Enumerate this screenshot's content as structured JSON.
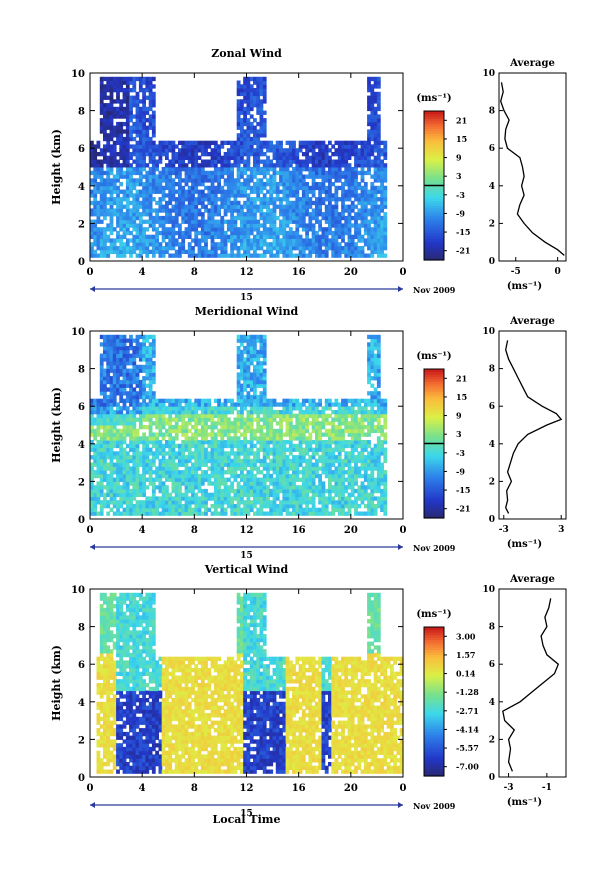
{
  "figure": {
    "date_label": "Nov 2009",
    "xlabel": "Local Time",
    "day_label": "15"
  },
  "chart_data": [
    {
      "type": "heatmap",
      "title": "Zonal Wind",
      "ylabel": "Height (km)",
      "xlim": [
        0,
        24
      ],
      "ylim": [
        0,
        10
      ],
      "x_ticks": [
        "0",
        "4",
        "8",
        "12",
        "16",
        "20",
        "0"
      ],
      "y_ticks": [
        "0",
        "2",
        "4",
        "6",
        "8",
        "10"
      ],
      "colorbar": {
        "unit": "(ms⁻¹)",
        "ticks": [
          "21",
          "15",
          "9",
          "3",
          "-3",
          "-9",
          "-15",
          "-21"
        ],
        "range": [
          -24,
          24
        ],
        "zero_contour": true
      },
      "profile": {
        "title": "Average",
        "xlabel": "(ms⁻¹)",
        "xlim": [
          -7,
          1
        ],
        "x_ticks": [
          "-5",
          "0"
        ],
        "y_ticks": [
          "0",
          "2",
          "4",
          "6",
          "8",
          "10"
        ],
        "height": [
          0.3,
          0.6,
          1.0,
          1.5,
          2.0,
          2.5,
          3.0,
          3.5,
          4.0,
          4.5,
          5.0,
          5.5,
          6.0,
          6.5,
          7.0,
          7.5,
          8.0,
          8.5,
          9.0,
          9.5
        ],
        "value": [
          0.8,
          0.0,
          -1.5,
          -3.0,
          -4.0,
          -4.8,
          -4.5,
          -4.0,
          -4.3,
          -4.0,
          -4.2,
          -4.5,
          -6.0,
          -6.3,
          -6.2,
          -5.8,
          -6.4,
          -6.8,
          -6.5,
          -6.7
        ]
      }
    },
    {
      "type": "heatmap",
      "title": "Meridional Wind",
      "ylabel": "Height (km)",
      "xlim": [
        0,
        24
      ],
      "ylim": [
        0,
        10
      ],
      "x_ticks": [
        "0",
        "4",
        "8",
        "12",
        "16",
        "20",
        "0"
      ],
      "y_ticks": [
        "0",
        "2",
        "4",
        "6",
        "8",
        "10"
      ],
      "colorbar": {
        "unit": "(ms⁻¹)",
        "ticks": [
          "21",
          "15",
          "9",
          "3",
          "-3",
          "-9",
          "-15",
          "-21"
        ],
        "range": [
          -24,
          24
        ],
        "zero_contour": true
      },
      "profile": {
        "title": "Average",
        "xlabel": "(ms⁻¹)",
        "xlim": [
          -3.5,
          3.5
        ],
        "x_ticks": [
          "-3",
          "3"
        ],
        "y_ticks": [
          "0",
          "2",
          "4",
          "6",
          "8",
          "10"
        ],
        "height": [
          0.3,
          0.6,
          1.0,
          1.5,
          2.0,
          2.5,
          3.0,
          3.5,
          4.0,
          4.5,
          5.0,
          5.3,
          5.6,
          6.0,
          6.5,
          7.0,
          7.5,
          8.0,
          8.5,
          9.0,
          9.5
        ],
        "value": [
          -2.5,
          -2.8,
          -2.6,
          -2.7,
          -2.2,
          -2.6,
          -2.3,
          -2.0,
          -1.5,
          -0.5,
          1.5,
          3.0,
          2.5,
          1.0,
          -0.5,
          -1.0,
          -1.5,
          -2.0,
          -2.5,
          -2.8,
          -2.6
        ]
      }
    },
    {
      "type": "heatmap",
      "title": "Vertical Wind",
      "ylabel": "Height (km)",
      "xlim": [
        0,
        24
      ],
      "ylim": [
        0,
        10
      ],
      "x_ticks": [
        "0",
        "4",
        "8",
        "12",
        "16",
        "20",
        "0"
      ],
      "y_ticks": [
        "0",
        "2",
        "4",
        "6",
        "8",
        "10"
      ],
      "colorbar": {
        "unit": "(ms⁻¹)",
        "ticks": [
          "3.00",
          "1.57",
          "0.14",
          "-1.28",
          "-2.71",
          "-4.14",
          "-5.57",
          "-7.00"
        ],
        "range": [
          -7.72,
          3.72
        ],
        "zero_contour": false
      },
      "profile": {
        "title": "Average",
        "xlabel": "(ms⁻¹)",
        "xlim": [
          -3.5,
          0
        ],
        "x_ticks": [
          "-3",
          "-1"
        ],
        "y_ticks": [
          "0",
          "2",
          "4",
          "6",
          "8",
          "10"
        ],
        "height": [
          0.3,
          0.8,
          1.5,
          2.0,
          2.5,
          3.0,
          3.5,
          4.0,
          4.5,
          5.0,
          5.5,
          6.0,
          6.5,
          7.0,
          7.5,
          8.0,
          8.5,
          9.0,
          9.5
        ],
        "value": [
          -2.8,
          -3.0,
          -2.9,
          -3.0,
          -2.7,
          -3.2,
          -3.3,
          -2.4,
          -1.8,
          -1.2,
          -0.6,
          -0.4,
          -1.0,
          -1.2,
          -1.3,
          -1.0,
          -1.1,
          -0.9,
          -0.8
        ]
      }
    }
  ]
}
